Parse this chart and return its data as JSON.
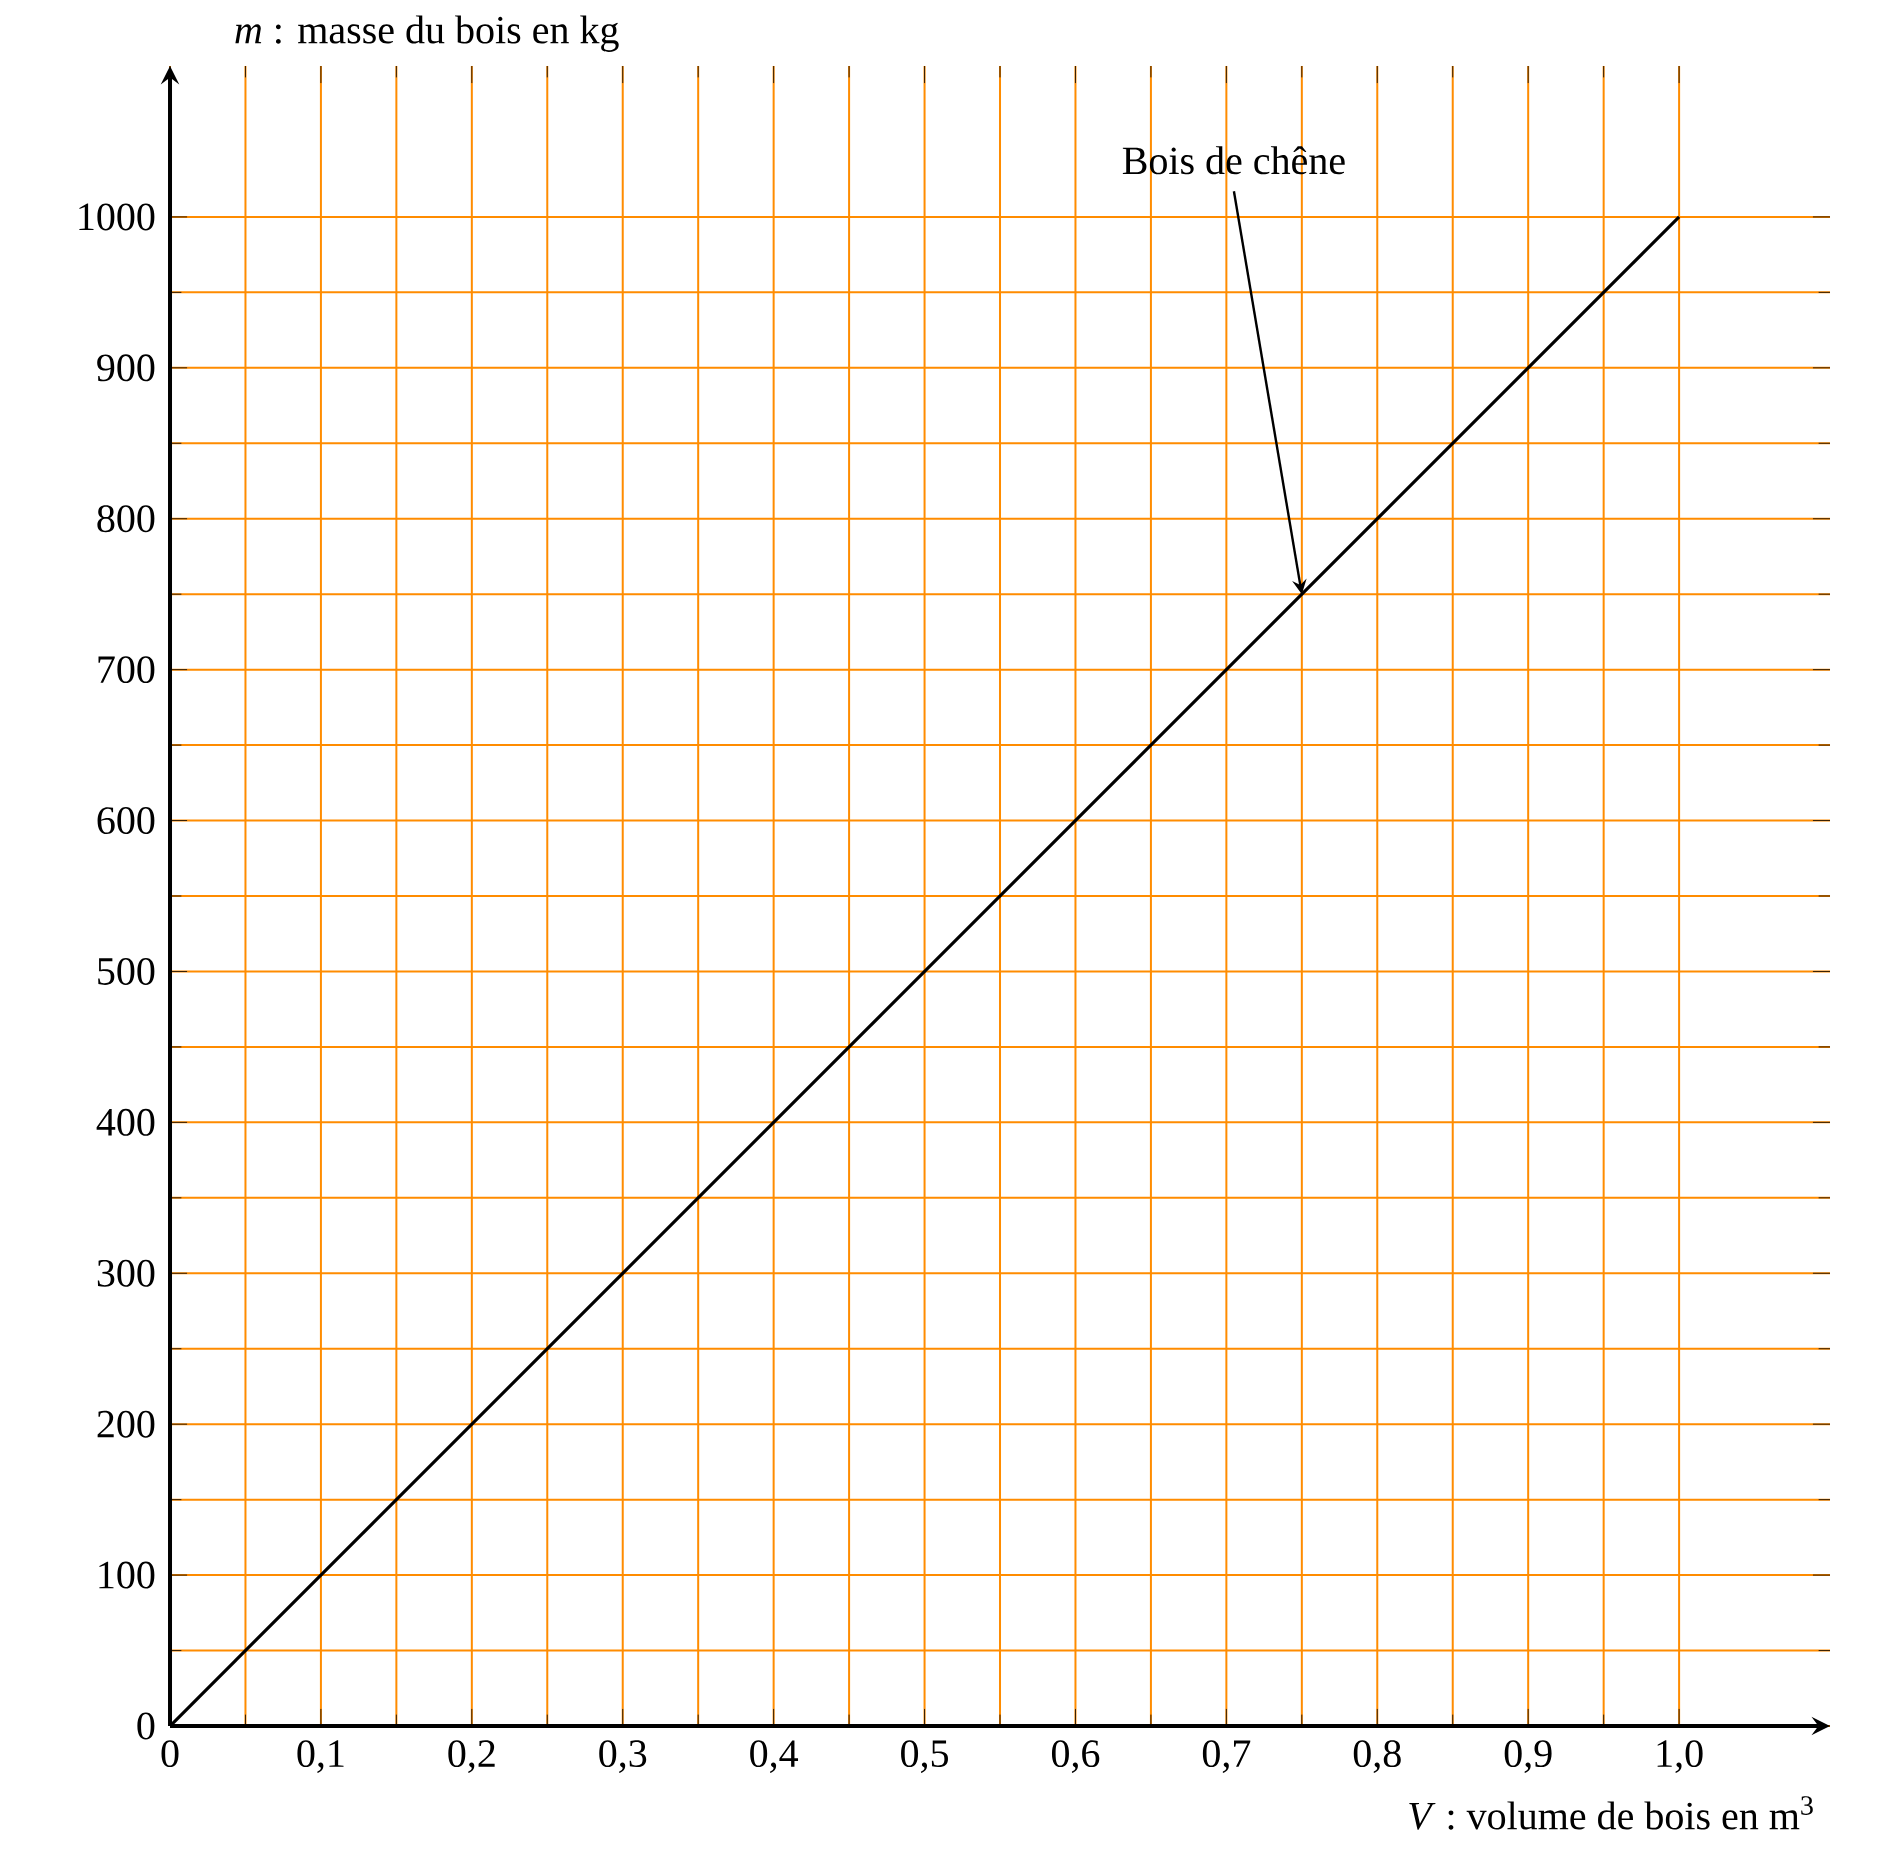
{
  "chart_data": {
    "type": "line",
    "xlabel": "*V* : volume de bois en m$^{3}$",
    "ylabel": "*m* : masse du bois en kg",
    "x": [
      0,
      1
    ],
    "series": [
      {
        "color": "#000000",
        "values": [
          0,
          1000
        ]
      }
    ],
    "xlim": [
      0,
      1.1
    ],
    "ylim": [
      0,
      1100
    ],
    "xticks": [
      0,
      {
        "value": 0.1,
        "label": "0,1"
      },
      {
        "value": 0.2,
        "label": "0,2"
      },
      {
        "value": 0.3,
        "label": "0,3"
      },
      {
        "value": 0.4,
        "label": "0,4"
      },
      {
        "value": 0.5,
        "label": "0,5"
      },
      {
        "value": 0.6,
        "label": "0,6"
      },
      {
        "value": 0.7,
        "label": "0,7"
      },
      {
        "value": 0.8,
        "label": "0,8"
      },
      {
        "value": 0.9,
        "label": "0,9"
      },
      {
        "value": 1.0,
        "label": "1,0"
      }
    ],
    "yticks": [
      0,
      100,
      200,
      300,
      400,
      500,
      600,
      700,
      800,
      900,
      1000
    ],
    "grid": true,
    "annotations": [
      {
        "text": "Bois de chêne",
        "x": 0.75,
        "y": 750
      }
    ]
  }
}
